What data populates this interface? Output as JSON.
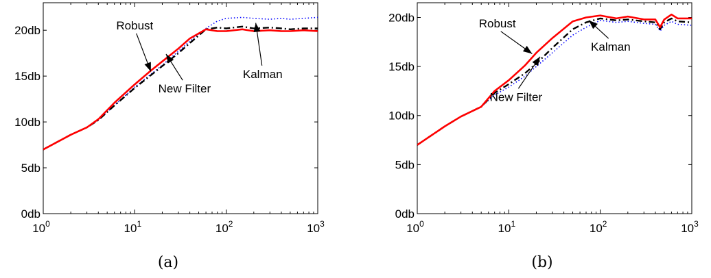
{
  "chart_data": [
    {
      "type": "line",
      "caption": "(a)",
      "x_scale": "log",
      "xlim": [
        1,
        1000
      ],
      "ylim": [
        0,
        23
      ],
      "x_ticks": [
        {
          "value": 1,
          "base": "10",
          "exp": "0"
        },
        {
          "value": 10,
          "base": "10",
          "exp": "1"
        },
        {
          "value": 100,
          "base": "10",
          "exp": "2"
        },
        {
          "value": 1000,
          "base": "10",
          "exp": "3"
        }
      ],
      "y_ticks": [
        {
          "value": 0,
          "label": "0db"
        },
        {
          "value": 5,
          "label": "5db"
        },
        {
          "value": 10,
          "label": "10db"
        },
        {
          "value": 15,
          "label": "15db"
        },
        {
          "value": 20,
          "label": "20db"
        }
      ],
      "grid": false,
      "series": [
        {
          "name": "Kalman",
          "color": "#0000ff",
          "style": "dotted",
          "x": [
            1,
            2,
            3,
            4,
            6,
            10,
            15,
            20,
            30,
            40,
            60,
            80,
            100,
            150,
            200,
            300,
            400,
            500,
            700,
            1000
          ],
          "y": [
            7.0,
            8.6,
            9.4,
            10.2,
            11.8,
            13.8,
            15.2,
            16.2,
            17.7,
            18.8,
            20.2,
            21.0,
            21.3,
            21.4,
            21.3,
            21.2,
            21.3,
            21.2,
            21.3,
            21.4
          ]
        },
        {
          "name": "New Filter",
          "color": "#000000",
          "style": "dashdot",
          "x": [
            1,
            2,
            3,
            4,
            6,
            10,
            15,
            20,
            30,
            40,
            60,
            80,
            100,
            150,
            200,
            300,
            400,
            500,
            700,
            1000
          ],
          "y": [
            7.0,
            8.6,
            9.4,
            10.2,
            11.8,
            13.7,
            15.1,
            16.1,
            17.5,
            18.6,
            20.1,
            20.3,
            20.2,
            20.4,
            20.2,
            20.3,
            20.2,
            20.1,
            20.2,
            20.2
          ]
        },
        {
          "name": "Robust",
          "color": "#ff0000",
          "style": "solid",
          "x": [
            1,
            2,
            3,
            4,
            6,
            10,
            15,
            20,
            30,
            40,
            60,
            80,
            100,
            150,
            200,
            300,
            400,
            500,
            700,
            1000
          ],
          "y": [
            7.0,
            8.6,
            9.4,
            10.3,
            12.1,
            14.1,
            15.6,
            16.6,
            18.0,
            19.1,
            20.1,
            19.9,
            19.9,
            20.1,
            19.9,
            20.0,
            19.9,
            19.9,
            20.0,
            19.9
          ]
        }
      ],
      "annotations": [
        {
          "text": "Robust",
          "x": 10,
          "y": 20.1,
          "arrow_to": [
            15,
            15.5
          ]
        },
        {
          "text": "New Filter",
          "x": 35,
          "y": 13.2,
          "arrow_to": [
            22,
            17.4
          ]
        },
        {
          "text": "Kalman",
          "x": 250,
          "y": 14.8,
          "arrow_to": [
            210,
            20.8
          ]
        }
      ]
    },
    {
      "type": "line",
      "caption": "(b)",
      "x_scale": "log",
      "xlim": [
        1,
        1000
      ],
      "ylim": [
        0,
        21.5
      ],
      "x_ticks": [
        {
          "value": 1,
          "base": "10",
          "exp": "0"
        },
        {
          "value": 10,
          "base": "10",
          "exp": "1"
        },
        {
          "value": 100,
          "base": "10",
          "exp": "2"
        },
        {
          "value": 1000,
          "base": "10",
          "exp": "3"
        }
      ],
      "y_ticks": [
        {
          "value": 0,
          "label": "0db"
        },
        {
          "value": 5,
          "label": "5db"
        },
        {
          "value": 10,
          "label": "10db"
        },
        {
          "value": 15,
          "label": "15db"
        },
        {
          "value": 20,
          "label": "20db"
        }
      ],
      "grid": false,
      "series": [
        {
          "name": "Kalman",
          "color": "#0000ff",
          "style": "dotted",
          "x": [
            1,
            2,
            3,
            5,
            7,
            10,
            15,
            20,
            30,
            50,
            70,
            100,
            150,
            200,
            300,
            400,
            450,
            500,
            600,
            700,
            1000
          ],
          "y": [
            7.0,
            8.9,
            9.9,
            10.9,
            12.1,
            12.9,
            14.0,
            15.0,
            16.4,
            18.2,
            19.0,
            19.7,
            19.5,
            19.6,
            19.4,
            19.3,
            18.6,
            19.2,
            19.6,
            19.3,
            19.2
          ]
        },
        {
          "name": "New Filter",
          "color": "#000000",
          "style": "dashdot",
          "x": [
            1,
            2,
            3,
            5,
            7,
            10,
            15,
            20,
            30,
            50,
            70,
            100,
            150,
            200,
            300,
            400,
            450,
            500,
            600,
            700,
            1000
          ],
          "y": [
            7.0,
            8.9,
            9.9,
            10.9,
            12.3,
            13.2,
            14.3,
            15.3,
            16.9,
            18.8,
            19.5,
            19.9,
            19.7,
            19.8,
            19.6,
            19.5,
            18.8,
            19.5,
            19.9,
            19.6,
            19.5
          ]
        },
        {
          "name": "Robust",
          "color": "#ff0000",
          "style": "solid",
          "x": [
            1,
            2,
            3,
            5,
            7,
            10,
            15,
            20,
            30,
            50,
            70,
            100,
            150,
            200,
            300,
            400,
            450,
            500,
            600,
            700,
            1000
          ],
          "y": [
            7.0,
            8.9,
            9.9,
            10.9,
            12.5,
            13.6,
            15.1,
            16.4,
            17.9,
            19.6,
            20.0,
            20.2,
            19.9,
            20.1,
            19.8,
            19.8,
            19.0,
            19.8,
            20.3,
            19.9,
            19.9
          ]
        }
      ],
      "annotations": [
        {
          "text": "Robust",
          "x": 7.5,
          "y": 19.0,
          "arrow_to": [
            18,
            16.3
          ]
        },
        {
          "text": "New Filter",
          "x": 12,
          "y": 11.5,
          "arrow_to": [
            22,
            16.0
          ]
        },
        {
          "text": "Kalman",
          "x": 130,
          "y": 16.6,
          "arrow_to": [
            75,
            19.7
          ]
        }
      ]
    }
  ]
}
